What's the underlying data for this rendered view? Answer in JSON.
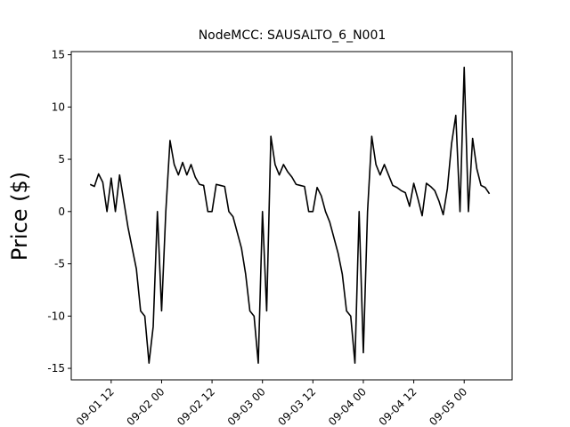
{
  "chart_data": {
    "type": "line",
    "title": "NodeMCC: SAUSALTO_6_N001",
    "y_label": "Price ($)",
    "x": [
      7,
      8,
      9,
      10,
      11,
      12,
      13,
      14,
      15,
      16,
      17,
      18,
      19,
      20,
      21,
      22,
      23,
      24,
      25,
      26,
      27,
      28,
      29,
      30,
      31,
      32,
      33,
      34,
      35,
      36,
      37,
      38,
      39,
      40,
      41,
      42,
      43,
      44,
      45,
      46,
      47,
      48,
      49,
      50,
      51,
      52,
      53,
      54,
      55,
      56,
      57,
      58,
      59,
      60,
      61,
      62,
      63,
      64,
      65,
      66,
      67,
      68,
      69,
      70,
      71,
      72,
      73,
      74,
      75,
      76,
      77,
      78,
      79,
      80,
      81,
      82,
      83,
      84,
      85,
      86,
      87,
      88,
      89,
      90,
      91,
      92,
      93,
      94,
      95,
      96,
      97,
      98,
      99,
      100,
      101,
      102
    ],
    "series": [
      {
        "name": "Price",
        "color": "#000000",
        "values": [
          2.6,
          2.4,
          3.6,
          2.8,
          0,
          3.2,
          0,
          3.5,
          1.0,
          -1.5,
          -3.5,
          -5.5,
          -9.5,
          -10,
          -14.5,
          -11,
          0,
          -9.5,
          0,
          6.8,
          4.5,
          3.5,
          4.7,
          3.5,
          4.5,
          3.3,
          2.6,
          2.5,
          0,
          0,
          2.6,
          2.5,
          2.4,
          0,
          -0.5,
          -2,
          -3.5,
          -6,
          -9.5,
          -10,
          -14.5,
          0,
          -9.5,
          7.2,
          4.5,
          3.5,
          4.5,
          3.8,
          3.3,
          2.6,
          2.5,
          2.4,
          0,
          0,
          2.3,
          1.5,
          0,
          -1,
          -2.5,
          -4,
          -6,
          -9.5,
          -10,
          -14.5,
          0,
          -13.5,
          0,
          7.2,
          4.5,
          3.5,
          4.5,
          3.5,
          2.5,
          2.3,
          2.0,
          1.8,
          0.5,
          2.7,
          1.2,
          -0.4,
          2.7,
          2.4,
          2.0,
          1.0,
          -0.3,
          2.2,
          6.5,
          9.2,
          0,
          13.8,
          0,
          7,
          4.1,
          2.5,
          2.3,
          1.7
        ]
      }
    ],
    "xlim": [
      2.5,
      107.4
    ],
    "xticks": [
      {
        "value": 12,
        "label": "09-01 12"
      },
      {
        "value": 24,
        "label": "09-02 00"
      },
      {
        "value": 36,
        "label": "09-02 12"
      },
      {
        "value": 48,
        "label": "09-03 00"
      },
      {
        "value": 60,
        "label": "09-03 12"
      },
      {
        "value": 72,
        "label": "09-04 00"
      },
      {
        "value": 84,
        "label": "09-04 12"
      },
      {
        "value": 96,
        "label": "09-05 00"
      }
    ],
    "ylim": [
      -16.1,
      15.3
    ],
    "yticks": [
      -15,
      -10,
      -5,
      0,
      5,
      10,
      15
    ]
  }
}
